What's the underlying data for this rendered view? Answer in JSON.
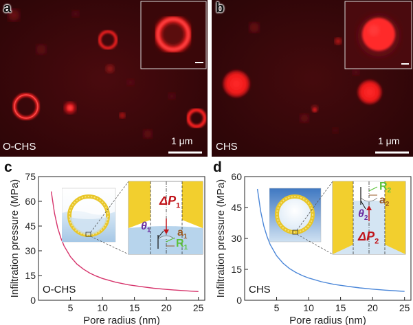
{
  "panels": {
    "a": {
      "letter": "a",
      "sample_label": "O-CHS",
      "scalebar_label": "1 μm"
    },
    "b": {
      "letter": "b",
      "sample_label": "CHS",
      "scalebar_label": "1 μm"
    },
    "c": {
      "letter": "c",
      "sample_label": "O-CHS",
      "schematic": {
        "pressure_symbol": "ΔP",
        "pressure_sub": "1",
        "angle_symbol": "θ",
        "angle_sub": "1",
        "a_symbol": "a",
        "a_sub": "1",
        "r_symbol": "R",
        "r_sub": "1"
      }
    },
    "d": {
      "letter": "d",
      "sample_label": "CHS",
      "schematic": {
        "pressure_symbol": "ΔP",
        "pressure_sub": "2",
        "angle_symbol": "θ",
        "angle_sub": "2",
        "a_symbol": "a",
        "a_sub": "2",
        "r_symbol": "R",
        "r_sub": "2"
      }
    }
  },
  "colors": {
    "fluor_red": "#ff1a1a",
    "curve_c": "#d6336b",
    "curve_d": "#4a86d8",
    "shell_yellow": "#f2d33a",
    "water_blue": "#b9d6ee",
    "theta_purple": "#6a2ca0",
    "a_brown": "#9a5a23",
    "r_green": "#5cc23a",
    "dp_red": "#c0141a"
  },
  "chart_data": [
    {
      "type": "line",
      "panel": "c",
      "xlabel": "Pore radius (nm)",
      "ylabel": "Infiltration pressure (MPa)",
      "xlim": [
        0,
        26
      ],
      "ylim": [
        0,
        75
      ],
      "xticks": [
        5,
        10,
        15,
        20,
        25
      ],
      "yticks": [
        0,
        15,
        30,
        45,
        60,
        75
      ],
      "series": [
        {
          "x": [
            2,
            2.5,
            3,
            3.5,
            4,
            5,
            6,
            7,
            8,
            9,
            10,
            12,
            14,
            16,
            18,
            20,
            22,
            24,
            25
          ],
          "y": [
            66,
            52.8,
            44,
            37.7,
            33,
            26.4,
            22,
            18.9,
            16.5,
            14.7,
            13.2,
            11,
            9.4,
            8.3,
            7.3,
            6.6,
            6,
            5.5,
            5.3
          ]
        }
      ]
    },
    {
      "type": "line",
      "panel": "d",
      "xlabel": "Pore radius (nm)",
      "ylabel": "Infiltration pressure (MPa)",
      "xlim": [
        0,
        26
      ],
      "ylim": [
        0,
        60
      ],
      "xticks": [
        5,
        10,
        15,
        20,
        25
      ],
      "yticks": [
        0,
        15,
        30,
        45,
        60
      ],
      "series": [
        {
          "x": [
            2,
            2.5,
            3,
            3.5,
            4,
            5,
            6,
            7,
            8,
            9,
            10,
            12,
            14,
            16,
            18,
            20,
            22,
            24,
            25
          ],
          "y": [
            54,
            43.2,
            36,
            30.9,
            27,
            21.6,
            18,
            15.4,
            13.5,
            12,
            10.8,
            9,
            7.7,
            6.8,
            6,
            5.4,
            4.9,
            4.5,
            4.3
          ]
        }
      ]
    }
  ]
}
